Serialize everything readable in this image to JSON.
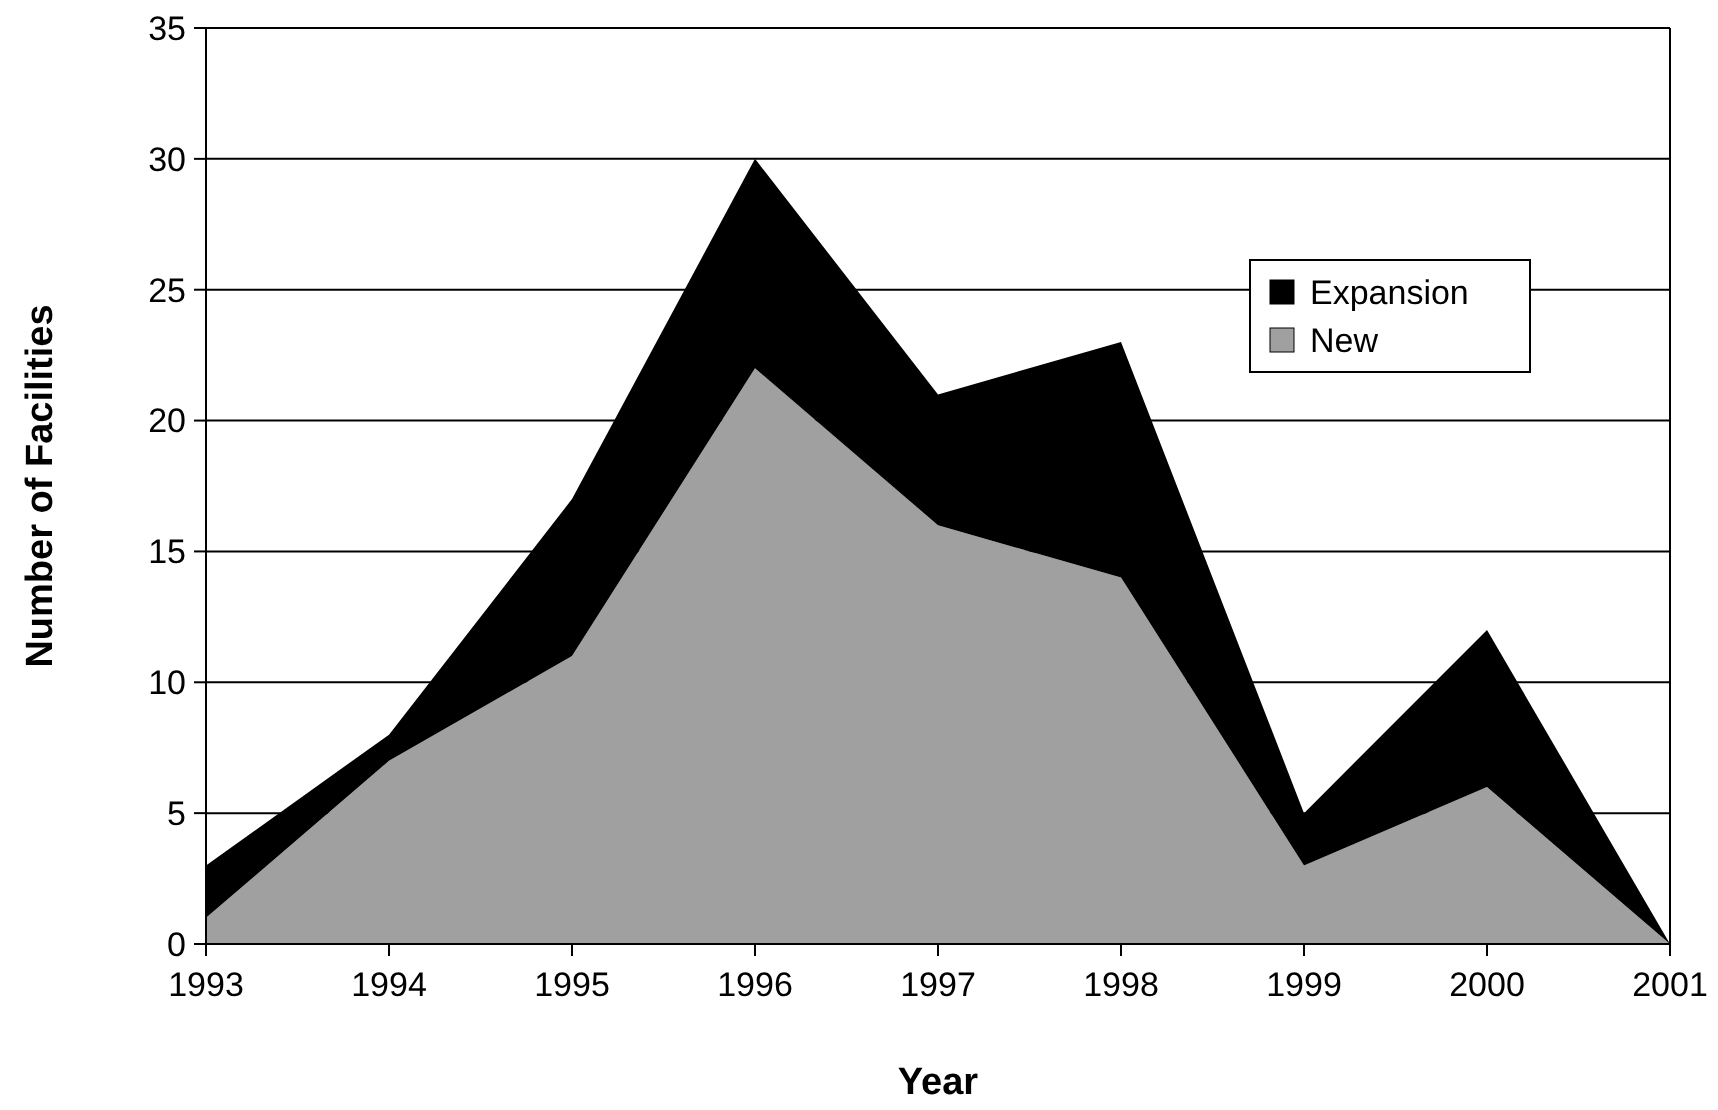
{
  "chart_data": {
    "type": "area",
    "stacked": true,
    "xlabel": "Year",
    "ylabel": "Number of Facilities",
    "x": [
      1993,
      1994,
      1995,
      1996,
      1997,
      1998,
      1999,
      2000,
      2001
    ],
    "xlim": [
      1993,
      2001
    ],
    "xticks": [
      1993,
      1994,
      1995,
      1996,
      1997,
      1998,
      1999,
      2000,
      2001
    ],
    "ylim": [
      0,
      35
    ],
    "yticks": [
      0,
      5,
      10,
      15,
      20,
      25,
      30,
      35
    ],
    "grid": "y",
    "legend": "top right",
    "series": [
      {
        "name": "New",
        "color": "#a0a0a0",
        "values": [
          1,
          7,
          11,
          22,
          16,
          14,
          3,
          6,
          0
        ]
      },
      {
        "name": "Expansion",
        "color": "#000000",
        "values": [
          2,
          1,
          6,
          8,
          5,
          9,
          2,
          6,
          0
        ]
      }
    ]
  }
}
